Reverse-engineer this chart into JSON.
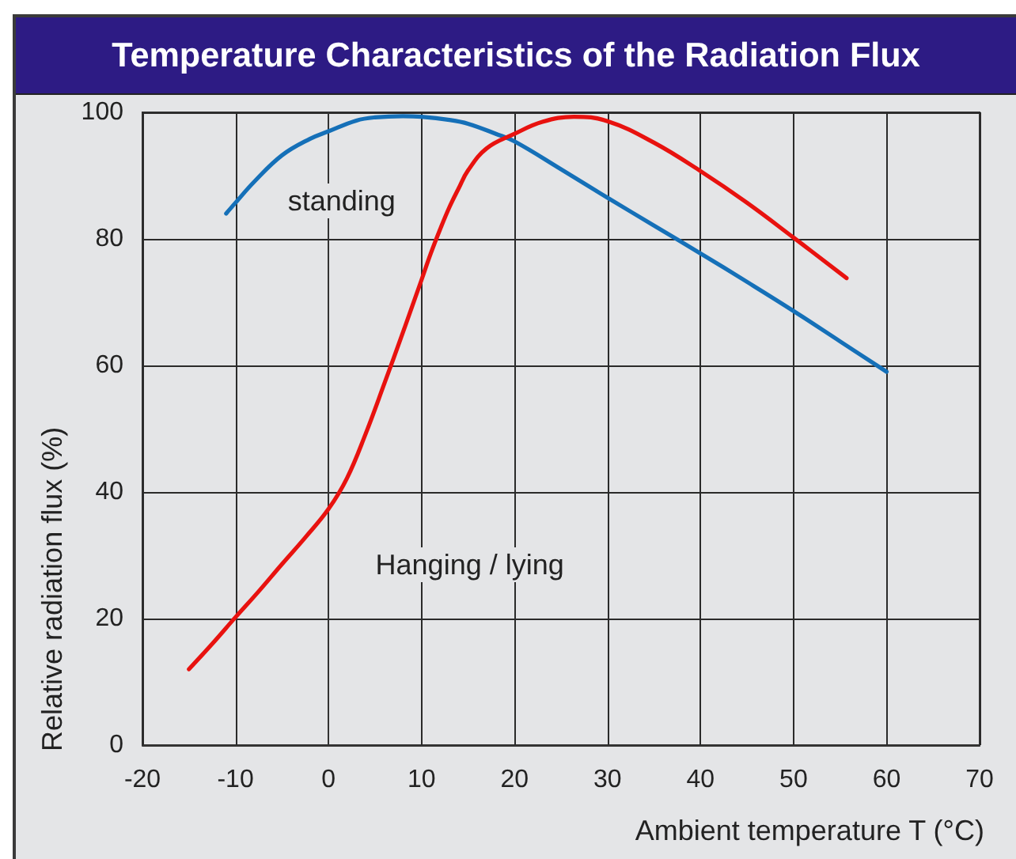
{
  "chart_data": {
    "type": "line",
    "title": "Temperature Characteristics of the Radiation Flux",
    "xlabel": "Ambient temperature T (°C)",
    "ylabel": "Relative radiation flux (%)",
    "xlim": [
      -20,
      70
    ],
    "ylim": [
      0,
      100
    ],
    "xticks": [
      -20,
      -10,
      0,
      10,
      20,
      30,
      40,
      50,
      60,
      70
    ],
    "yticks": [
      0,
      20,
      40,
      60,
      80,
      100
    ],
    "grid": true,
    "marker": "none",
    "line_style": "solid",
    "series": [
      {
        "name": "standing",
        "color": "#1570b8",
        "x": [
          -11,
          -10,
          -8,
          -5,
          -2,
          0,
          3,
          5,
          8,
          10,
          13,
          15,
          18,
          20,
          25,
          30,
          35,
          40,
          45,
          50,
          55,
          60
        ],
        "values": [
          84,
          85.7,
          89,
          93.2,
          95.8,
          97,
          98.7,
          99.2,
          99.4,
          99.3,
          98.8,
          98.2,
          96.6,
          95.4,
          91,
          86.5,
          82.1,
          77.7,
          73.2,
          68.6,
          63.8,
          59
        ]
      },
      {
        "name": "Hanging / lying",
        "color": "#e8120f",
        "x": [
          -15,
          -12.5,
          -10,
          -7.5,
          -5,
          -2.5,
          0,
          2,
          4,
          6,
          8,
          10,
          11,
          12,
          13,
          14,
          15,
          17,
          20,
          23,
          26.4,
          30,
          35,
          40,
          45,
          50,
          55.7
        ],
        "values": [
          12,
          16,
          20.2,
          24.3,
          28.6,
          32.8,
          37.3,
          42.2,
          49.2,
          57.1,
          65.2,
          73.5,
          77.7,
          81.5,
          85,
          88,
          90.8,
          94.3,
          96.6,
          98.5,
          99.3,
          98.6,
          95.2,
          90.7,
          85.7,
          80.2,
          73.8
        ]
      }
    ]
  }
}
